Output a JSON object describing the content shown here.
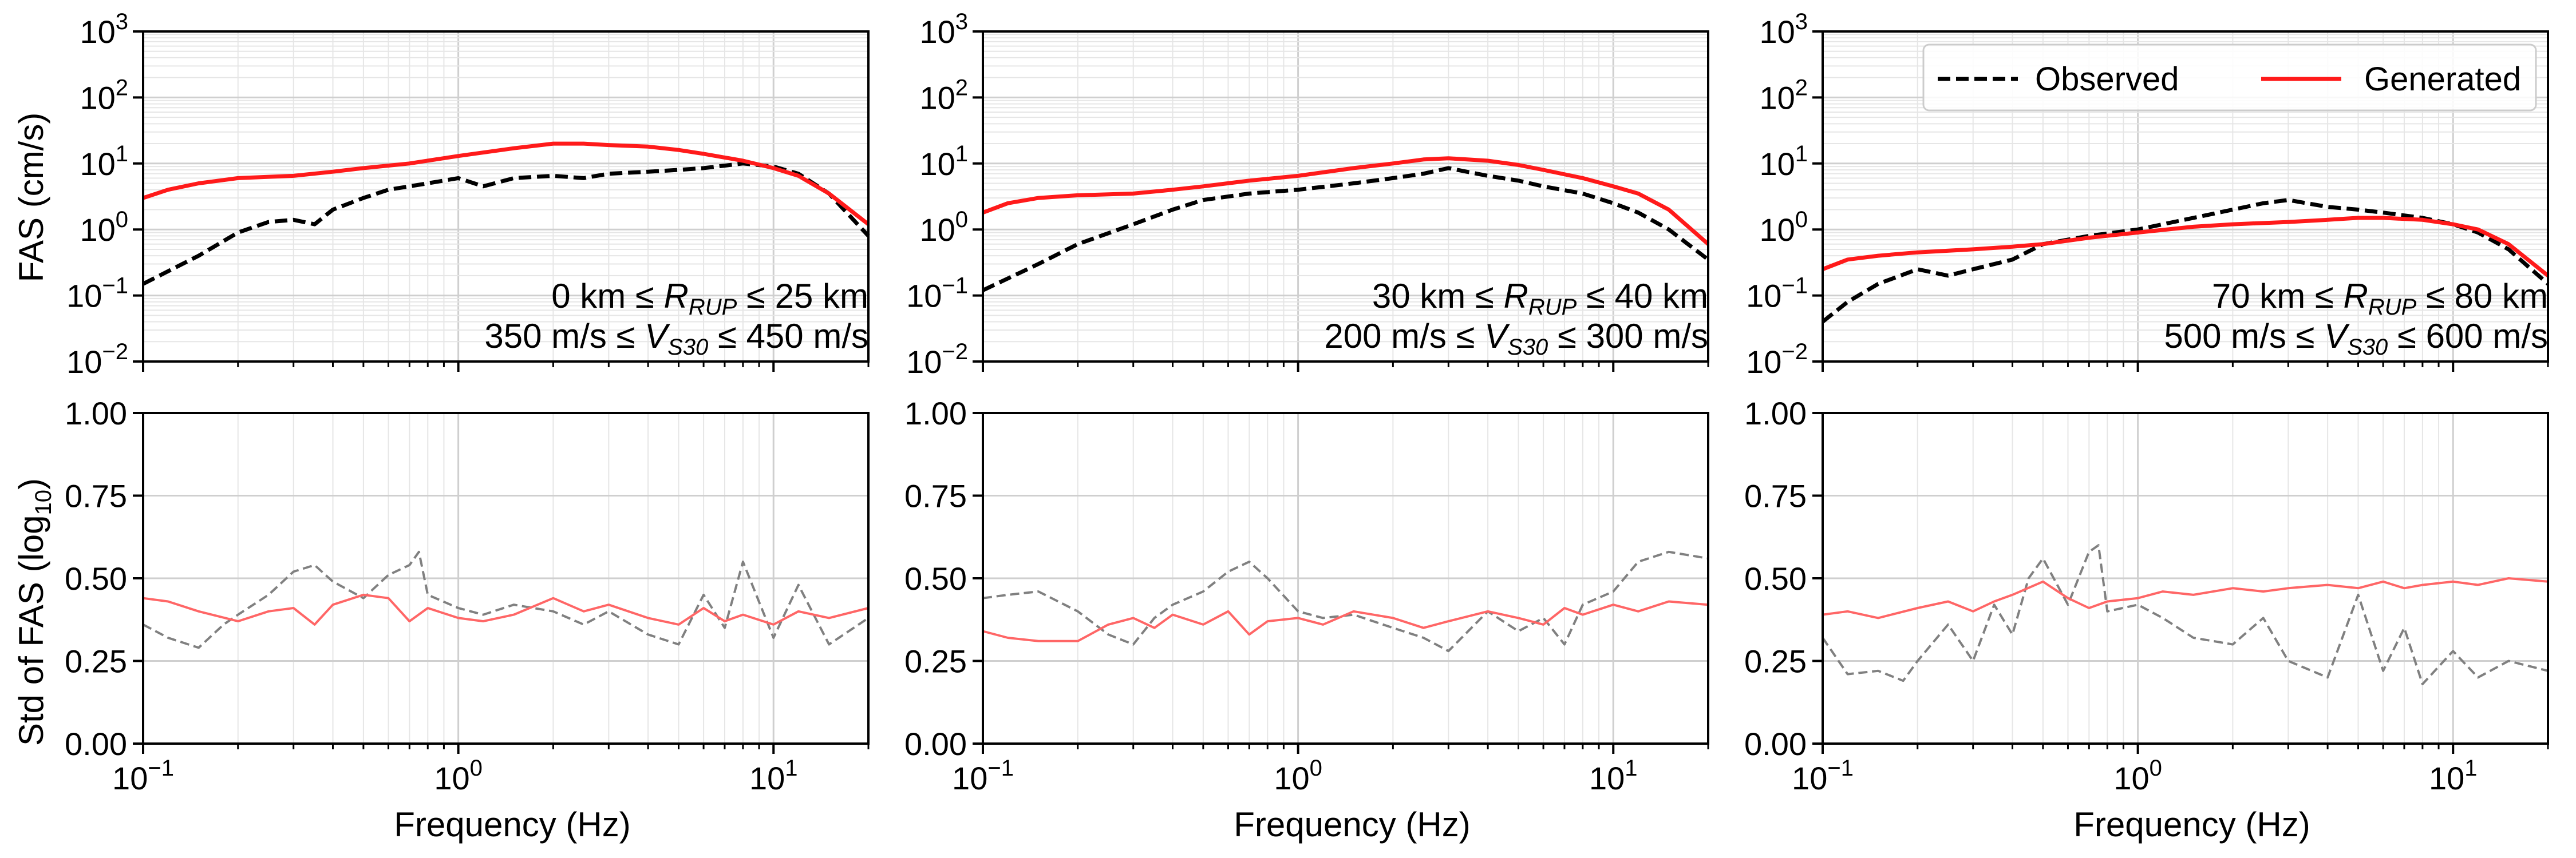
{
  "chart_data": [
    {
      "type": "line",
      "panel": "top-left",
      "ylabel": "FAS (cm/s)",
      "yscale": "log",
      "xscale": "log",
      "xlim": [
        0.1,
        20
      ],
      "ylim": [
        0.01,
        1000
      ],
      "annotation_line1": "0 km ≤ R_RUP ≤ 25 km",
      "annotation_line2": "350 m/s ≤ V_S30 ≤ 450 m/s",
      "series": [
        {
          "name": "Observed",
          "style": "dashed",
          "color": "#000000",
          "x": [
            0.1,
            0.15,
            0.2,
            0.25,
            0.3,
            0.35,
            0.4,
            0.5,
            0.6,
            0.7,
            0.8,
            1.0,
            1.2,
            1.5,
            2,
            2.5,
            3,
            4,
            5,
            6,
            8,
            10,
            12,
            15,
            20
          ],
          "y": [
            0.15,
            0.4,
            0.9,
            1.3,
            1.4,
            1.2,
            2.0,
            3.0,
            4.0,
            4.5,
            5.0,
            6.0,
            4.5,
            6.0,
            6.5,
            6.0,
            7.0,
            7.5,
            8.0,
            8.5,
            10.0,
            9.0,
            7.0,
            3.5,
            0.8
          ]
        },
        {
          "name": "Generated",
          "style": "solid",
          "color": "#ff1a1a",
          "x": [
            0.1,
            0.12,
            0.15,
            0.2,
            0.3,
            0.4,
            0.5,
            0.7,
            1.0,
            1.5,
            2,
            2.5,
            3,
            4,
            5,
            6,
            8,
            10,
            12,
            15,
            20
          ],
          "y": [
            3.0,
            4.0,
            5.0,
            6.0,
            6.5,
            7.5,
            8.5,
            10.0,
            13.0,
            17.0,
            20.0,
            20.0,
            19.0,
            18.0,
            16.0,
            14.0,
            11.0,
            8.5,
            6.5,
            3.5,
            1.2
          ]
        }
      ]
    },
    {
      "type": "line",
      "panel": "top-middle",
      "yscale": "log",
      "xscale": "log",
      "xlim": [
        0.1,
        20
      ],
      "ylim": [
        0.01,
        1000
      ],
      "annotation_line1": "30 km ≤ R_RUP ≤ 40 km",
      "annotation_line2": "200 m/s ≤ V_S30 ≤ 300 m/s",
      "series": [
        {
          "name": "Observed",
          "style": "dashed",
          "color": "#000000",
          "x": [
            0.1,
            0.15,
            0.2,
            0.3,
            0.4,
            0.5,
            0.7,
            1.0,
            1.5,
            2,
            2.5,
            3,
            4,
            5,
            6,
            8,
            10,
            12,
            15,
            20
          ],
          "y": [
            0.12,
            0.3,
            0.6,
            1.2,
            2.0,
            2.8,
            3.5,
            4.0,
            5.0,
            6.0,
            7.0,
            8.5,
            6.5,
            5.5,
            4.5,
            3.5,
            2.5,
            1.8,
            1.0,
            0.35
          ]
        },
        {
          "name": "Generated",
          "style": "solid",
          "color": "#ff1a1a",
          "x": [
            0.1,
            0.12,
            0.15,
            0.2,
            0.3,
            0.4,
            0.5,
            0.7,
            1.0,
            1.5,
            2,
            2.5,
            3,
            4,
            5,
            6,
            8,
            10,
            12,
            15,
            20
          ],
          "y": [
            1.8,
            2.5,
            3.0,
            3.3,
            3.5,
            4.0,
            4.5,
            5.5,
            6.5,
            8.5,
            10.0,
            11.5,
            12.0,
            11.0,
            9.5,
            8.0,
            6.0,
            4.5,
            3.5,
            2.0,
            0.6
          ]
        }
      ]
    },
    {
      "type": "line",
      "panel": "top-right",
      "yscale": "log",
      "xscale": "log",
      "xlim": [
        0.1,
        20
      ],
      "ylim": [
        0.01,
        1000
      ],
      "annotation_line1": "70 km ≤ R_RUP ≤ 80 km",
      "annotation_line2": "500 m/s ≤ V_S30 ≤ 600 m/s",
      "legend": {
        "position": "top-right",
        "entries": [
          "Observed",
          "Generated"
        ]
      },
      "series": [
        {
          "name": "Observed",
          "style": "dashed",
          "color": "#000000",
          "x": [
            0.1,
            0.12,
            0.15,
            0.2,
            0.25,
            0.3,
            0.4,
            0.5,
            0.7,
            1.0,
            1.5,
            2,
            2.5,
            3,
            4,
            5,
            6,
            8,
            10,
            12,
            15,
            20
          ],
          "y": [
            0.04,
            0.08,
            0.15,
            0.25,
            0.2,
            0.25,
            0.35,
            0.6,
            0.8,
            1.0,
            1.5,
            2.0,
            2.5,
            2.8,
            2.2,
            2.0,
            1.8,
            1.5,
            1.2,
            0.9,
            0.5,
            0.15
          ]
        },
        {
          "name": "Generated",
          "style": "solid",
          "color": "#ff1a1a",
          "x": [
            0.1,
            0.12,
            0.15,
            0.2,
            0.3,
            0.4,
            0.5,
            0.7,
            1.0,
            1.5,
            2,
            3,
            4,
            5,
            6,
            8,
            10,
            12,
            15,
            20
          ],
          "y": [
            0.25,
            0.35,
            0.4,
            0.45,
            0.5,
            0.55,
            0.6,
            0.75,
            0.9,
            1.1,
            1.2,
            1.3,
            1.4,
            1.5,
            1.5,
            1.4,
            1.2,
            1.0,
            0.6,
            0.2
          ]
        }
      ]
    },
    {
      "type": "line",
      "panel": "bottom-left",
      "ylabel": "Std of FAS (log10)",
      "xlabel": "Frequency (Hz)",
      "xscale": "log",
      "xlim": [
        0.1,
        20
      ],
      "ylim": [
        0.0,
        1.0
      ],
      "series": [
        {
          "name": "Observed",
          "style": "dashed",
          "color": "#808080",
          "x": [
            0.1,
            0.12,
            0.15,
            0.18,
            0.2,
            0.25,
            0.3,
            0.35,
            0.4,
            0.5,
            0.6,
            0.7,
            0.75,
            0.8,
            1.0,
            1.2,
            1.5,
            2,
            2.5,
            3,
            4,
            5,
            6,
            7,
            8,
            10,
            12,
            15,
            20
          ],
          "y": [
            0.36,
            0.32,
            0.29,
            0.36,
            0.39,
            0.45,
            0.52,
            0.54,
            0.49,
            0.44,
            0.51,
            0.54,
            0.58,
            0.45,
            0.41,
            0.39,
            0.42,
            0.4,
            0.36,
            0.4,
            0.33,
            0.3,
            0.45,
            0.35,
            0.55,
            0.32,
            0.48,
            0.3,
            0.38
          ]
        },
        {
          "name": "Generated",
          "style": "solid",
          "color": "#ff6666",
          "x": [
            0.1,
            0.12,
            0.15,
            0.2,
            0.25,
            0.3,
            0.35,
            0.4,
            0.5,
            0.6,
            0.7,
            0.8,
            1.0,
            1.2,
            1.5,
            2,
            2.5,
            3,
            4,
            5,
            6,
            7,
            8,
            10,
            12,
            15,
            20
          ],
          "y": [
            0.44,
            0.43,
            0.4,
            0.37,
            0.4,
            0.41,
            0.36,
            0.42,
            0.45,
            0.44,
            0.37,
            0.41,
            0.38,
            0.37,
            0.39,
            0.44,
            0.4,
            0.42,
            0.38,
            0.36,
            0.41,
            0.37,
            0.39,
            0.36,
            0.4,
            0.38,
            0.41
          ]
        }
      ]
    },
    {
      "type": "line",
      "panel": "bottom-middle",
      "xlabel": "Frequency (Hz)",
      "xscale": "log",
      "xlim": [
        0.1,
        20
      ],
      "ylim": [
        0.0,
        1.0
      ],
      "series": [
        {
          "name": "Observed",
          "style": "dashed",
          "color": "#808080",
          "x": [
            0.1,
            0.12,
            0.15,
            0.2,
            0.25,
            0.3,
            0.35,
            0.4,
            0.5,
            0.6,
            0.7,
            0.8,
            1.0,
            1.2,
            1.5,
            2,
            2.5,
            3,
            4,
            5,
            6,
            7,
            8,
            10,
            12,
            15,
            20
          ],
          "y": [
            0.44,
            0.45,
            0.46,
            0.4,
            0.33,
            0.3,
            0.38,
            0.42,
            0.46,
            0.52,
            0.55,
            0.5,
            0.4,
            0.38,
            0.39,
            0.35,
            0.32,
            0.28,
            0.4,
            0.34,
            0.38,
            0.3,
            0.42,
            0.46,
            0.55,
            0.58,
            0.56
          ]
        },
        {
          "name": "Generated",
          "style": "solid",
          "color": "#ff6666",
          "x": [
            0.1,
            0.12,
            0.15,
            0.2,
            0.25,
            0.3,
            0.35,
            0.4,
            0.5,
            0.6,
            0.7,
            0.8,
            1.0,
            1.2,
            1.5,
            2,
            2.5,
            3,
            4,
            5,
            6,
            7,
            8,
            10,
            12,
            15,
            20
          ],
          "y": [
            0.34,
            0.32,
            0.31,
            0.31,
            0.36,
            0.38,
            0.35,
            0.39,
            0.36,
            0.4,
            0.33,
            0.37,
            0.38,
            0.36,
            0.4,
            0.38,
            0.35,
            0.37,
            0.4,
            0.38,
            0.36,
            0.41,
            0.39,
            0.42,
            0.4,
            0.43,
            0.42
          ]
        }
      ]
    },
    {
      "type": "line",
      "panel": "bottom-right",
      "xlabel": "Frequency (Hz)",
      "xscale": "log",
      "xlim": [
        0.1,
        20
      ],
      "ylim": [
        0.0,
        1.0
      ],
      "series": [
        {
          "name": "Observed",
          "style": "dashed",
          "color": "#808080",
          "x": [
            0.1,
            0.12,
            0.15,
            0.18,
            0.2,
            0.25,
            0.3,
            0.35,
            0.4,
            0.45,
            0.5,
            0.6,
            0.7,
            0.75,
            0.8,
            1.0,
            1.2,
            1.5,
            2,
            2.5,
            3,
            4,
            5,
            6,
            7,
            8,
            10,
            12,
            15,
            20
          ],
          "y": [
            0.32,
            0.21,
            0.22,
            0.19,
            0.25,
            0.36,
            0.25,
            0.42,
            0.33,
            0.5,
            0.56,
            0.42,
            0.58,
            0.6,
            0.4,
            0.42,
            0.38,
            0.32,
            0.3,
            0.38,
            0.25,
            0.2,
            0.45,
            0.22,
            0.35,
            0.18,
            0.28,
            0.2,
            0.25,
            0.22
          ]
        },
        {
          "name": "Generated",
          "style": "solid",
          "color": "#ff6666",
          "x": [
            0.1,
            0.12,
            0.15,
            0.2,
            0.25,
            0.3,
            0.35,
            0.4,
            0.5,
            0.6,
            0.7,
            0.8,
            1.0,
            1.2,
            1.5,
            2,
            2.5,
            3,
            4,
            5,
            6,
            7,
            8,
            10,
            12,
            15,
            20
          ],
          "y": [
            0.39,
            0.4,
            0.38,
            0.41,
            0.43,
            0.4,
            0.43,
            0.45,
            0.49,
            0.44,
            0.41,
            0.43,
            0.44,
            0.46,
            0.45,
            0.47,
            0.46,
            0.47,
            0.48,
            0.47,
            0.49,
            0.47,
            0.48,
            0.49,
            0.48,
            0.5,
            0.49
          ]
        }
      ]
    }
  ],
  "text": {
    "top_ylabel": "FAS (cm/s)",
    "bottom_ylabel_main": "Std of FAS (log",
    "bottom_ylabel_sub": "10",
    "bottom_ylabel_end": ")",
    "xlabel": "Frequency (Hz)",
    "legend_observed": "Observed",
    "legend_generated": "Generated",
    "top_y_ticks": [
      "10^-2",
      "10^-1",
      "10^0",
      "10^1",
      "10^2",
      "10^3"
    ],
    "bottom_y_ticks": [
      "0.00",
      "0.25",
      "0.50",
      "0.75",
      "1.00"
    ],
    "x_ticks": [
      "10^-1",
      "10^0",
      "10^1"
    ],
    "ann_left_1": "0 km ≤ ",
    "ann_left_2": "350 m/s ≤ ",
    "ann_left_range1": " ≤ 25 km",
    "ann_left_range2": " ≤ 450 m/s",
    "ann_mid_1": "30 km ≤ ",
    "ann_mid_2": "200 m/s ≤ ",
    "ann_mid_range1": " ≤ 40 km",
    "ann_mid_range2": " ≤ 300 m/s",
    "ann_right_1": "70 km ≤ ",
    "ann_right_2": "500 m/s ≤ ",
    "ann_right_range1": " ≤ 80 km",
    "ann_right_range2": " ≤ 600 m/s",
    "rrup_R": "R",
    "rrup_sub": "RUP",
    "vs_V": "V",
    "vs_sub": "S30"
  }
}
